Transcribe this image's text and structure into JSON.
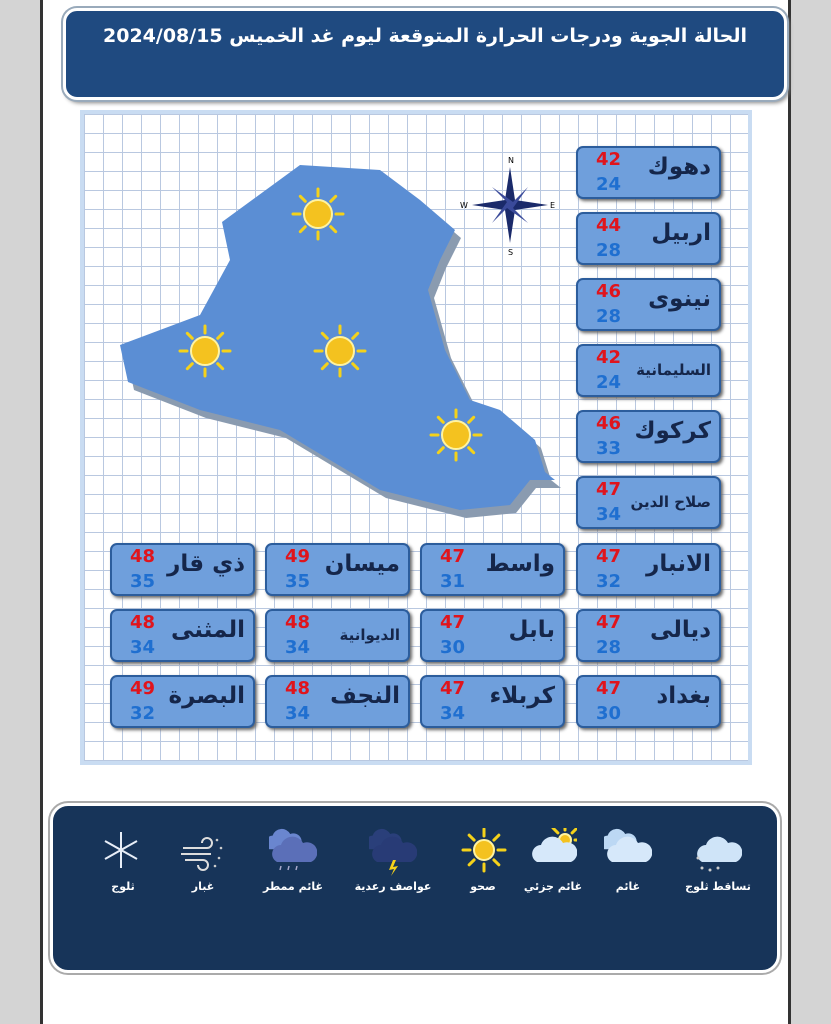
{
  "title": "الحالة الجوية ودرجات الحرارة المتوقعة ليوم غد الخميس 2024/08/15",
  "colors": {
    "header": "#1f4a80",
    "card": "#6f9fdc",
    "max": "#e0141c",
    "min": "#1f6fd0",
    "legend": "#173459"
  },
  "compass": {
    "n": "N",
    "s": "S",
    "e": "E",
    "w": "W"
  },
  "map_icons": [
    "sunny",
    "sunny",
    "sunny",
    "sunny",
    "sunny"
  ],
  "cities": [
    {
      "name": "دهوك",
      "max": "42",
      "min": "24"
    },
    {
      "name": "اربيل",
      "max": "44",
      "min": "28"
    },
    {
      "name": "نينوى",
      "max": "46",
      "min": "28"
    },
    {
      "name": "السليمانية",
      "max": "42",
      "min": "24"
    },
    {
      "name": "كركوك",
      "max": "46",
      "min": "33"
    },
    {
      "name": "صلاح الدين",
      "max": "47",
      "min": "34"
    },
    {
      "name": "الانبار",
      "max": "47",
      "min": "32"
    },
    {
      "name": "واسط",
      "max": "47",
      "min": "31"
    },
    {
      "name": "ميسان",
      "max": "49",
      "min": "35"
    },
    {
      "name": "ذي قار",
      "max": "48",
      "min": "35"
    },
    {
      "name": "ديالى",
      "max": "47",
      "min": "28"
    },
    {
      "name": "بابل",
      "max": "47",
      "min": "30"
    },
    {
      "name": "الديوانية",
      "max": "48",
      "min": "34"
    },
    {
      "name": "المثنى",
      "max": "48",
      "min": "34"
    },
    {
      "name": "بغداد",
      "max": "47",
      "min": "30"
    },
    {
      "name": "كربلاء",
      "max": "47",
      "min": "34"
    },
    {
      "name": "النجف",
      "max": "48",
      "min": "34"
    },
    {
      "name": "البصرة",
      "max": "49",
      "min": "32"
    }
  ],
  "legend": [
    {
      "icon": "snowfall-icon",
      "label": "تساقط ثلوج"
    },
    {
      "icon": "cloudy-icon",
      "label": "غائم"
    },
    {
      "icon": "partly-cloudy-icon",
      "label": "غائم جزئي"
    },
    {
      "icon": "sunny-icon",
      "label": "صحو"
    },
    {
      "icon": "thunderstorm-icon",
      "label": "عواصف رعدية"
    },
    {
      "icon": "rain-cloud-icon",
      "label": "غائم ممطر"
    },
    {
      "icon": "dust-icon",
      "label": "غبار"
    },
    {
      "icon": "snow-icon",
      "label": "ثلوج"
    }
  ]
}
